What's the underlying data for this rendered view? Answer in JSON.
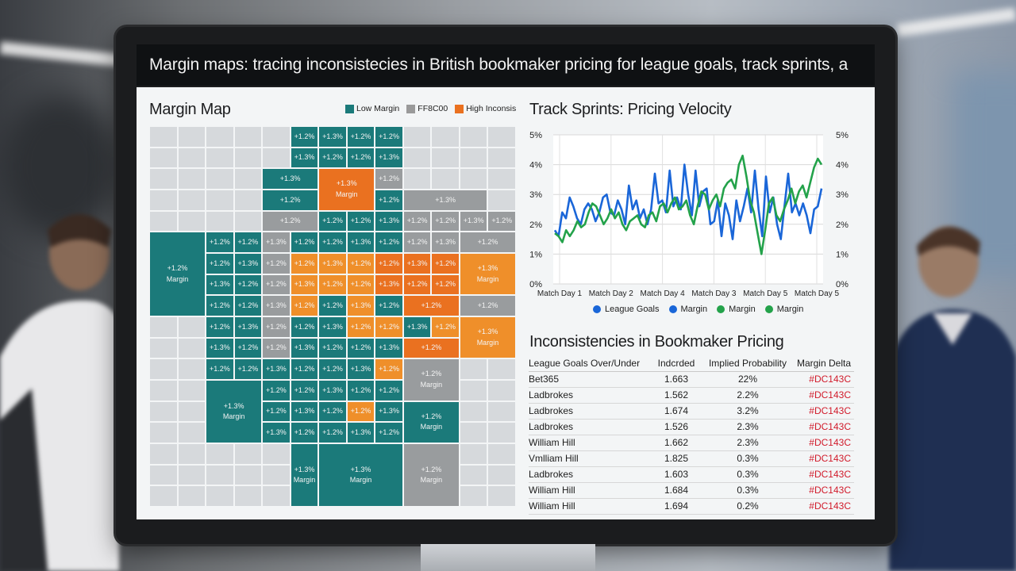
{
  "title_bar": "Margin maps: tracing inconsistecies in British bookmaker pricing for league goals, track sprints, a",
  "margin_map": {
    "title": "Margin Map",
    "legend": [
      {
        "label": "Low Margin",
        "color": "#1b7a7a"
      },
      {
        "label": "FF8C00",
        "color": "#9a9a9a"
      },
      {
        "label": "High Inconsis",
        "color": "#ea7120"
      }
    ],
    "cell_label": "+1.2%",
    "cell_label_alt": "+1.3%",
    "big_cell_sublabel": "Margin",
    "big_labels": [
      "+1.3%",
      "+1.2%",
      "+1.3%",
      "+1.3%",
      "+1.2%",
      "+1.3%",
      "+1.2%",
      "+1.3%",
      "+1.3%"
    ],
    "colors": {
      "teal": "#1b7a7a",
      "gray": "#999c9e",
      "orange": "#ea7120",
      "orange_light": "#ef8f2a",
      "empty": "#d6d9dc"
    }
  },
  "chart": {
    "title": "Track Sprints: Pricing Velocity",
    "legend": [
      {
        "label": "League Goals",
        "color": "#1a66d8"
      },
      {
        "label": "Margin",
        "color": "#1a66d8"
      },
      {
        "label": "Margin",
        "color": "#23a24a"
      },
      {
        "label": "Margin",
        "color": "#23a24a"
      }
    ]
  },
  "chart_data": {
    "type": "line",
    "title": "Track Sprints: Pricing Velocity",
    "x_tick_labels": [
      "Match Day 1",
      "Match Day 2",
      "Match Day 4",
      "Match Day 3",
      "Match Day 5",
      "Match Day 5"
    ],
    "y_left_ticks": [
      "0%",
      "1%",
      "2%",
      "3%",
      "4%",
      "5%"
    ],
    "y_right_ticks": [
      "0%",
      "1%",
      "2%",
      "3%",
      "4%",
      "5%"
    ],
    "ylim": [
      0,
      5
    ],
    "grid": true,
    "series": [
      {
        "name": "League Goals",
        "color": "#1a66d8",
        "values": [
          1.8,
          1.6,
          2.4,
          2.2,
          2.9,
          2.6,
          2.2,
          2.0,
          2.5,
          2.7,
          2.5,
          2.1,
          2.4,
          2.9,
          3.0,
          2.4,
          2.3,
          2.8,
          2.5,
          2.0,
          3.3,
          2.5,
          2.8,
          2.2,
          2.5,
          2.0,
          2.5,
          3.7,
          2.7,
          2.8,
          2.4,
          3.8,
          2.6,
          2.9,
          2.5,
          4.0,
          3.0,
          2.3,
          3.8,
          2.6,
          3.1,
          3.2,
          2.0,
          2.1,
          2.8,
          1.6,
          2.7,
          2.3,
          1.5,
          2.8,
          2.1,
          2.6,
          3.2,
          2.4,
          3.8,
          2.5,
          1.6,
          3.6,
          2.4,
          2.9,
          2.0,
          1.5,
          2.6,
          3.7,
          2.4,
          2.7,
          2.3,
          2.7,
          2.3,
          1.7,
          2.5,
          2.6,
          3.2
        ]
      },
      {
        "name": "Margin",
        "color": "#23a24a",
        "values": [
          1.7,
          1.6,
          1.4,
          1.8,
          1.6,
          1.8,
          2.1,
          1.9,
          2.0,
          2.4,
          2.7,
          2.6,
          2.3,
          2.0,
          2.2,
          2.5,
          2.2,
          2.4,
          2.0,
          1.8,
          2.1,
          2.2,
          2.3,
          2.0,
          1.9,
          2.3,
          2.4,
          2.1,
          2.6,
          2.7,
          2.4,
          2.7,
          2.9,
          2.5,
          2.6,
          2.8,
          2.3,
          2.0,
          2.6,
          3.1,
          3.0,
          2.5,
          2.8,
          3.0,
          2.6,
          3.2,
          3.4,
          3.5,
          3.2,
          4.0,
          4.3,
          3.6,
          2.8,
          2.4,
          1.7,
          1.0,
          1.8,
          2.7,
          2.9,
          2.3,
          2.1,
          2.5,
          2.8,
          3.2,
          2.7,
          3.1,
          3.3,
          2.9,
          3.4,
          3.9,
          4.2,
          4.0
        ]
      }
    ]
  },
  "table": {
    "title": "Inconsistencies in Bookmaker Pricing",
    "headers": [
      "League Goals Over/Under",
      "Indcrded",
      "Implied Probability",
      "Margin Delta"
    ],
    "rows": [
      {
        "name": "Bet365",
        "value": "1.663",
        "prob": "22%",
        "delta": "#DC143C"
      },
      {
        "name": "Ladbrokes",
        "value": "1.562",
        "prob": "2.2%",
        "delta": "#DC143C"
      },
      {
        "name": "Ladbrokes",
        "value": "1.674",
        "prob": "3.2%",
        "delta": "#DC143C"
      },
      {
        "name": "Ladbrokes",
        "value": "1.526",
        "prob": "2.3%",
        "delta": "#DC143C"
      },
      {
        "name": "William Hill",
        "value": "1.662",
        "prob": "2.3%",
        "delta": "#DC143C"
      },
      {
        "name": "Vmlliam Hill",
        "value": "1.825",
        "prob": "0.3%",
        "delta": "#DC143C"
      },
      {
        "name": "Ladbrokes",
        "value": "1.603",
        "prob": "0.3%",
        "delta": "#DC143C"
      },
      {
        "name": "William Hill",
        "value": "1.684",
        "prob": "0.3%",
        "delta": "#DC143C"
      },
      {
        "name": "William Hill",
        "value": "1.694",
        "prob": "0.2%",
        "delta": "#DC143C"
      }
    ]
  }
}
